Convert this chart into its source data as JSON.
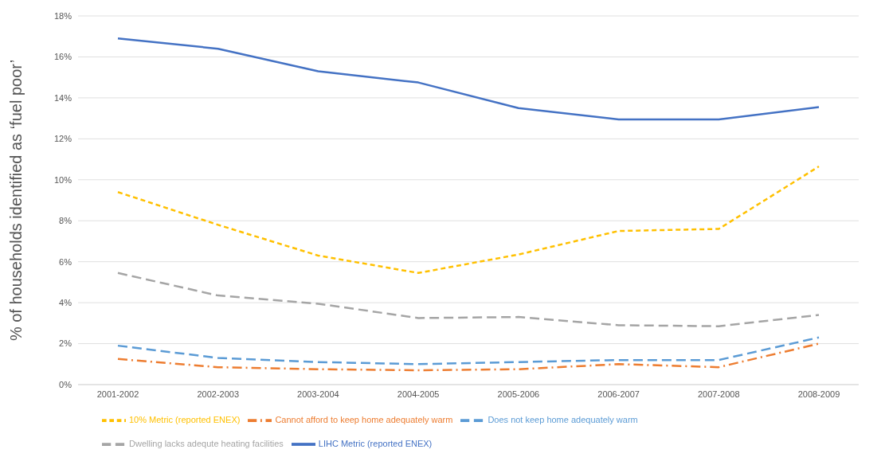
{
  "chart_data": {
    "type": "line",
    "ylabel": "% of households identified as ‘fuel poor’",
    "categories": [
      "2001-2002",
      "2002-2003",
      "2003-2004",
      "2004-2005",
      "2005-2006",
      "2006-2007",
      "2007-2008",
      "2008-2009"
    ],
    "ylim": [
      0,
      18
    ],
    "yticks": [
      {
        "value": 0,
        "label": "0%"
      },
      {
        "value": 2,
        "label": "2%"
      },
      {
        "value": 4,
        "label": "4%"
      },
      {
        "value": 6,
        "label": "6%"
      },
      {
        "value": 8,
        "label": "8%"
      },
      {
        "value": 10,
        "label": "10%"
      },
      {
        "value": 12,
        "label": "12%"
      },
      {
        "value": 14,
        "label": "14%"
      },
      {
        "value": 16,
        "label": "16%"
      },
      {
        "value": 18,
        "label": "18%"
      }
    ],
    "grid": "y",
    "legend": "bottom",
    "marker": "none",
    "series": [
      {
        "name": "Does not keep home adequately warm",
        "color": "#5b9bd5",
        "line_style": "dashed",
        "values": [
          1.9,
          1.3,
          1.1,
          1.0,
          1.1,
          1.2,
          1.2,
          2.3
        ]
      },
      {
        "name": "Cannot afford to keep home adequately warm",
        "color": "#ed7d31",
        "line_style": "dashdot",
        "values": [
          1.25,
          0.85,
          0.75,
          0.7,
          0.75,
          1.0,
          0.85,
          2.0
        ]
      },
      {
        "name": "Dwelling lacks adequte heating facilities",
        "color": "#a5a5a5",
        "line_style": "dashed",
        "values": [
          5.45,
          4.35,
          3.95,
          3.25,
          3.3,
          2.9,
          2.85,
          3.4
        ]
      },
      {
        "name": "10% Metric (reported ENEX)",
        "color": "#ffc000",
        "line_style": "dotted",
        "values": [
          9.4,
          7.8,
          6.3,
          5.45,
          6.35,
          7.5,
          7.6,
          10.65
        ]
      },
      {
        "name": "LIHC Metric (reported ENEX)",
        "color": "#4472c4",
        "line_style": "solid",
        "values": [
          16.9,
          16.4,
          15.3,
          14.75,
          13.5,
          12.95,
          12.95,
          13.55
        ]
      }
    ]
  }
}
